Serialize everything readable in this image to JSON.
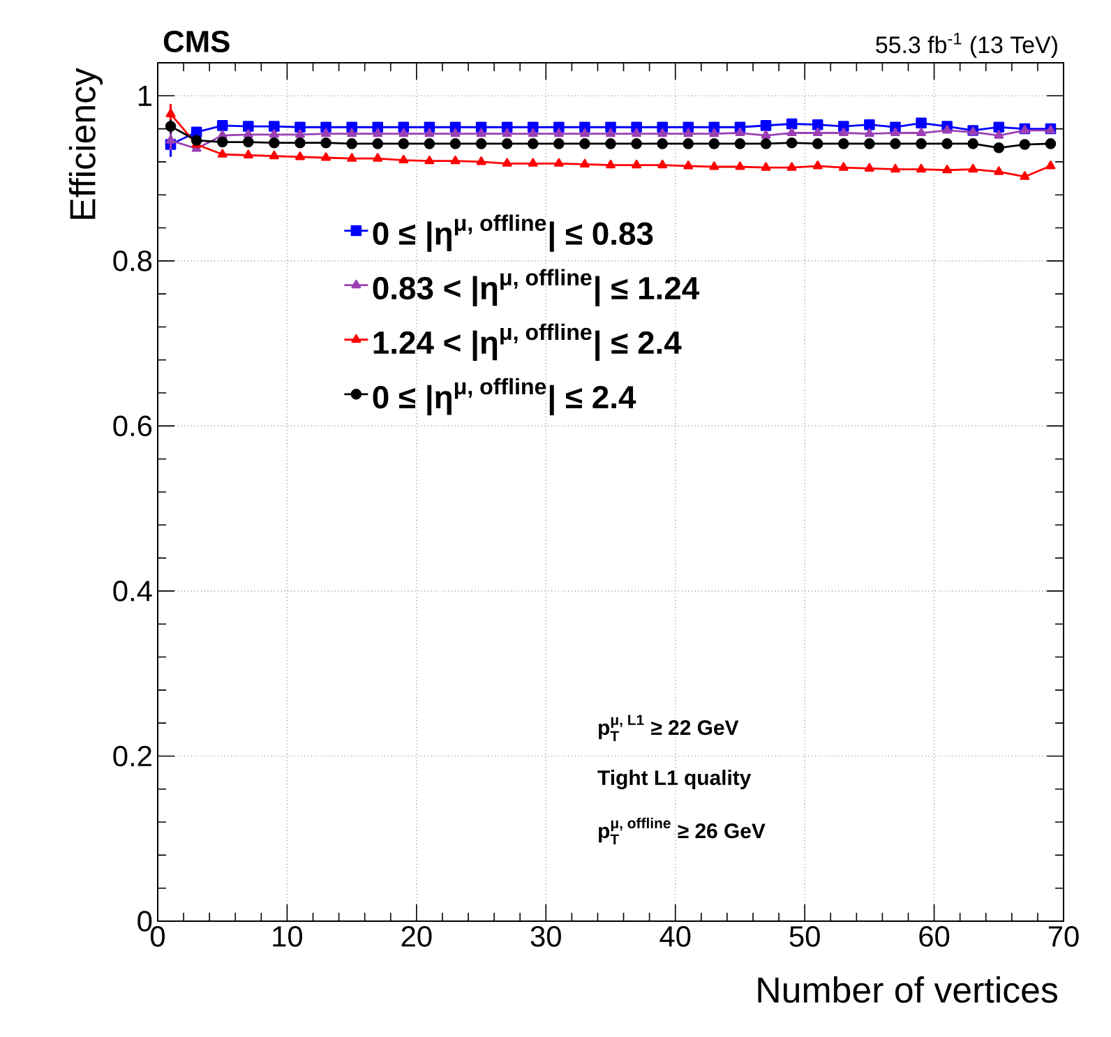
{
  "chart_data": {
    "type": "line",
    "title": "CMS",
    "subtitle": "55.3 fb$^{-1}$ (13 TeV)",
    "xlabel": "Number of vertices",
    "ylabel": "Efficiency",
    "x": [
      1,
      3,
      5,
      7,
      9,
      11,
      13,
      15,
      17,
      19,
      21,
      23,
      25,
      27,
      29,
      31,
      33,
      35,
      37,
      39,
      41,
      43,
      45,
      47,
      49,
      51,
      53,
      55,
      57,
      59,
      61,
      63,
      65,
      67,
      69
    ],
    "series": [
      {
        "name": "\\text{0 ≤ |η}^{\\text{μ, offline}}\\text{| ≤ 0.83}",
        "color": "#0000ff",
        "marker": "square",
        "values": [
          0.941,
          0.956,
          0.964,
          0.963,
          0.963,
          0.962,
          0.962,
          0.962,
          0.962,
          0.962,
          0.962,
          0.962,
          0.962,
          0.962,
          0.962,
          0.962,
          0.962,
          0.962,
          0.962,
          0.962,
          0.962,
          0.962,
          0.962,
          0.964,
          0.966,
          0.965,
          0.963,
          0.965,
          0.962,
          0.967,
          0.963,
          0.958,
          0.962,
          0.96,
          0.96
        ],
        "errors": [
          0.015,
          null,
          null,
          null,
          null,
          null,
          null,
          null,
          null,
          null,
          null,
          null,
          null,
          null,
          null,
          null,
          null,
          null,
          null,
          null,
          null,
          null,
          null,
          null,
          null,
          null,
          null,
          null,
          null,
          null,
          null,
          null,
          null,
          null,
          null
        ]
      },
      {
        "name": "\\text{0.83 < |η}^{\\text{μ, offline}}\\text{| ≤ 1.24}",
        "color": "#9b3fb5",
        "marker": "triangle",
        "values": [
          0.946,
          0.936,
          0.952,
          0.953,
          0.953,
          0.953,
          0.954,
          0.954,
          0.954,
          0.954,
          0.954,
          0.954,
          0.954,
          0.954,
          0.954,
          0.954,
          0.954,
          0.954,
          0.954,
          0.954,
          0.954,
          0.954,
          0.955,
          0.952,
          0.955,
          0.955,
          0.955,
          0.954,
          0.955,
          0.955,
          0.958,
          0.956,
          0.952,
          0.958,
          0.958
        ],
        "errors": [
          0.012,
          null,
          null,
          null,
          null,
          null,
          null,
          null,
          null,
          null,
          null,
          null,
          null,
          null,
          null,
          null,
          null,
          null,
          null,
          null,
          null,
          null,
          null,
          null,
          null,
          null,
          null,
          null,
          null,
          null,
          null,
          null,
          null,
          null,
          null
        ]
      },
      {
        "name": "\\text{1.24 < |η}^{\\text{μ, offline}}\\text{| ≤ 2.4}",
        "color": "#ff0000",
        "marker": "triangle",
        "values": [
          0.978,
          0.941,
          0.929,
          0.928,
          0.927,
          0.926,
          0.925,
          0.924,
          0.924,
          0.922,
          0.921,
          0.921,
          0.92,
          0.918,
          0.918,
          0.918,
          0.917,
          0.916,
          0.916,
          0.916,
          0.915,
          0.914,
          0.914,
          0.913,
          0.913,
          0.915,
          0.913,
          0.912,
          0.911,
          0.911,
          0.91,
          0.911,
          0.908,
          0.902,
          0.915
        ],
        "errors": [
          0.012,
          null,
          null,
          null,
          null,
          null,
          null,
          null,
          null,
          null,
          null,
          null,
          null,
          null,
          null,
          null,
          null,
          null,
          null,
          null,
          null,
          null,
          null,
          null,
          null,
          null,
          null,
          null,
          null,
          null,
          null,
          null,
          null,
          null,
          null
        ]
      },
      {
        "name": "\\text{0 ≤ |η}^{\\text{μ, offline}}\\text{| ≤ 2.4}",
        "color": "#000000",
        "marker": "circle",
        "values": [
          0.963,
          0.946,
          0.944,
          0.944,
          0.943,
          0.943,
          0.943,
          0.942,
          0.942,
          0.942,
          0.942,
          0.942,
          0.942,
          0.942,
          0.942,
          0.942,
          0.942,
          0.942,
          0.942,
          0.942,
          0.942,
          0.942,
          0.942,
          0.942,
          0.943,
          0.942,
          0.942,
          0.942,
          0.942,
          0.942,
          0.942,
          0.942,
          0.937,
          0.941,
          0.942
        ],
        "errors": [
          0.008,
          null,
          null,
          null,
          null,
          null,
          null,
          null,
          null,
          null,
          null,
          null,
          null,
          null,
          null,
          null,
          null,
          null,
          null,
          null,
          null,
          null,
          null,
          null,
          null,
          null,
          null,
          null,
          null,
          null,
          null,
          null,
          null,
          null,
          null
        ]
      }
    ],
    "annotations": [
      "\\text{p}_{\\text{T}}^{\\text{μ, L1}}\\text{ ≥ 22 GeV}",
      "\\text{Tight L1 quality}",
      "\\text{p}_{\\text{T}}^{\\text{μ, offline}}\\text{ ≥ 26 GeV}"
    ],
    "xlim": [
      0,
      70
    ],
    "xticks": [
      0,
      10,
      20,
      30,
      40,
      50,
      60,
      70
    ],
    "ylim": [
      0,
      1.04
    ],
    "yticks": [
      0,
      0.2,
      0.4,
      0.6,
      0.8,
      1
    ],
    "grid": true,
    "legend": "left"
  }
}
